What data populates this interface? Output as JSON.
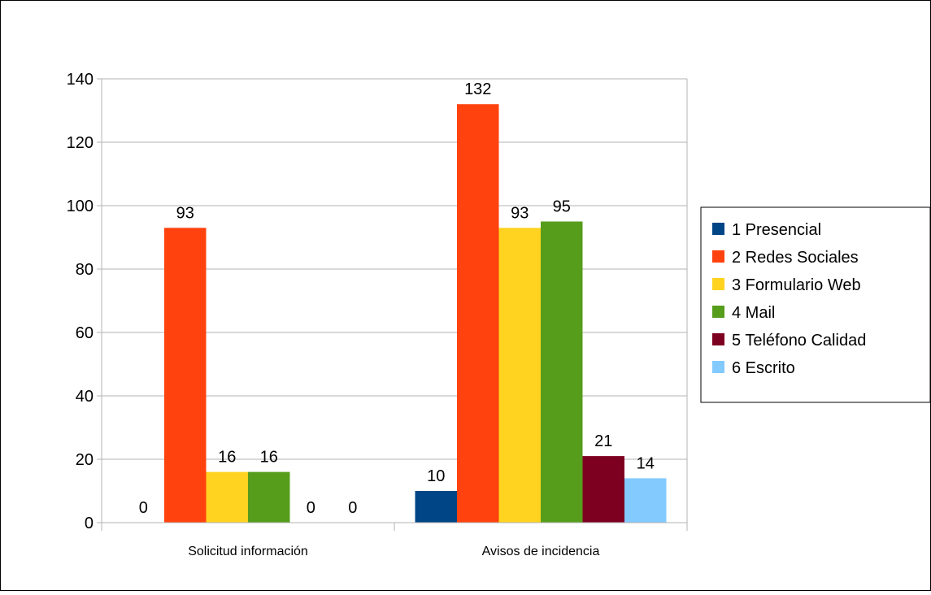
{
  "chart_data": {
    "type": "bar",
    "categories": [
      "Solicitud información",
      "Avisos de incidencia"
    ],
    "series": [
      {
        "name": "1 Presencial",
        "color": "#004586",
        "values": [
          0,
          10
        ]
      },
      {
        "name": "2 Redes Sociales",
        "color": "#ff420e",
        "values": [
          93,
          132
        ]
      },
      {
        "name": "3 Formulario Web",
        "color": "#ffd320",
        "values": [
          16,
          93
        ]
      },
      {
        "name": "4 Mail",
        "color": "#579d1c",
        "values": [
          16,
          95
        ]
      },
      {
        "name": "5 Teléfono Calidad",
        "color": "#7e0021",
        "values": [
          0,
          21
        ]
      },
      {
        "name": "6 Escrito",
        "color": "#83caff",
        "values": [
          0,
          14
        ]
      }
    ],
    "y_ticks": [
      "0",
      "20",
      "40",
      "60",
      "80",
      "100",
      "120",
      "140"
    ],
    "ylim": [
      0,
      140
    ],
    "grid": true,
    "legend": "right",
    "data_labels": true
  }
}
